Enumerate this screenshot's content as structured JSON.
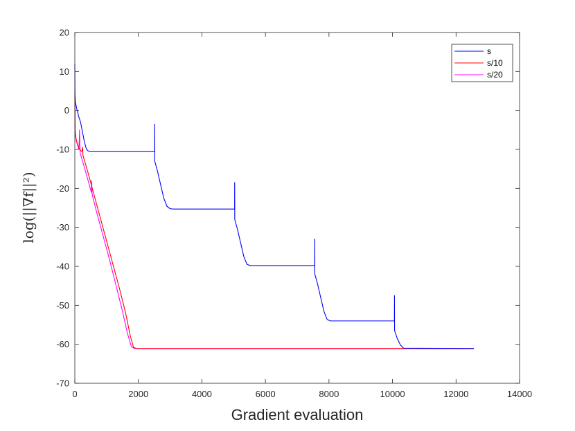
{
  "chart_data": {
    "type": "line",
    "xlabel": "Gradient evaluation",
    "ylabel": "log(||∇f||²)",
    "xlim": [
      0,
      14000
    ],
    "ylim": [
      -70,
      20
    ],
    "xticks": [
      0,
      2000,
      4000,
      6000,
      8000,
      10000,
      12000,
      14000
    ],
    "yticks": [
      -70,
      -60,
      -50,
      -40,
      -30,
      -20,
      -10,
      0,
      10,
      20
    ],
    "legend_position": "top-right",
    "series": [
      {
        "name": "s",
        "color": "#0000ff",
        "points": [
          [
            0,
            12
          ],
          [
            5,
            4
          ],
          [
            20,
            2
          ],
          [
            60,
            0.5
          ],
          [
            120,
            -1.5
          ],
          [
            180,
            -3
          ],
          [
            240,
            -5.5
          ],
          [
            300,
            -8
          ],
          [
            360,
            -9.8
          ],
          [
            420,
            -10.4
          ],
          [
            500,
            -10.5
          ],
          [
            2510,
            -10.5
          ],
          [
            2512,
            -3.5
          ],
          [
            2515,
            -13
          ],
          [
            2600,
            -15.5
          ],
          [
            2700,
            -19
          ],
          [
            2800,
            -22.5
          ],
          [
            2900,
            -24.6
          ],
          [
            3000,
            -25.2
          ],
          [
            3100,
            -25.3
          ],
          [
            5030,
            -25.3
          ],
          [
            5032,
            -18.5
          ],
          [
            5035,
            -28
          ],
          [
            5120,
            -30.5
          ],
          [
            5220,
            -34
          ],
          [
            5320,
            -37.5
          ],
          [
            5420,
            -39.5
          ],
          [
            5520,
            -39.8
          ],
          [
            7550,
            -39.8
          ],
          [
            7552,
            -33
          ],
          [
            7555,
            -42
          ],
          [
            7640,
            -44.5
          ],
          [
            7740,
            -48
          ],
          [
            7840,
            -51.5
          ],
          [
            7940,
            -53.6
          ],
          [
            8040,
            -54
          ],
          [
            10060,
            -54
          ],
          [
            10062,
            -47.5
          ],
          [
            10065,
            -56.5
          ],
          [
            10150,
            -58.5
          ],
          [
            10250,
            -60.2
          ],
          [
            10350,
            -61
          ],
          [
            12560,
            -61.1
          ]
        ]
      },
      {
        "name": "s/10",
        "color": "#ff0000",
        "points": [
          [
            0,
            5
          ],
          [
            10,
            -6
          ],
          [
            60,
            -8
          ],
          [
            120,
            -9.5
          ],
          [
            180,
            -10.3
          ],
          [
            220,
            -10.5
          ],
          [
            250,
            -9.5
          ],
          [
            255,
            -11.5
          ],
          [
            400,
            -15.5
          ],
          [
            600,
            -21.5
          ],
          [
            800,
            -27.5
          ],
          [
            1000,
            -33.5
          ],
          [
            1200,
            -39.5
          ],
          [
            1400,
            -45.5
          ],
          [
            1600,
            -52
          ],
          [
            1750,
            -58
          ],
          [
            1850,
            -60.8
          ],
          [
            1950,
            -61.1
          ],
          [
            12560,
            -61.1
          ]
        ]
      },
      {
        "name": "s/20",
        "color": "#ff00ff",
        "points": [
          [
            0,
            3.5
          ],
          [
            10,
            -5
          ],
          [
            40,
            -7.5
          ],
          [
            90,
            -9
          ],
          [
            130,
            -10
          ],
          [
            150,
            -5
          ],
          [
            160,
            -9
          ],
          [
            170,
            -11
          ],
          [
            350,
            -16
          ],
          [
            520,
            -21
          ],
          [
            530,
            -18
          ],
          [
            545,
            -21.5
          ],
          [
            700,
            -26.5
          ],
          [
            900,
            -32.5
          ],
          [
            1100,
            -38.5
          ],
          [
            1300,
            -45
          ],
          [
            1500,
            -51.5
          ],
          [
            1650,
            -57
          ],
          [
            1780,
            -60.6
          ],
          [
            1880,
            -61.1
          ],
          [
            12560,
            -61.1
          ]
        ]
      }
    ]
  }
}
